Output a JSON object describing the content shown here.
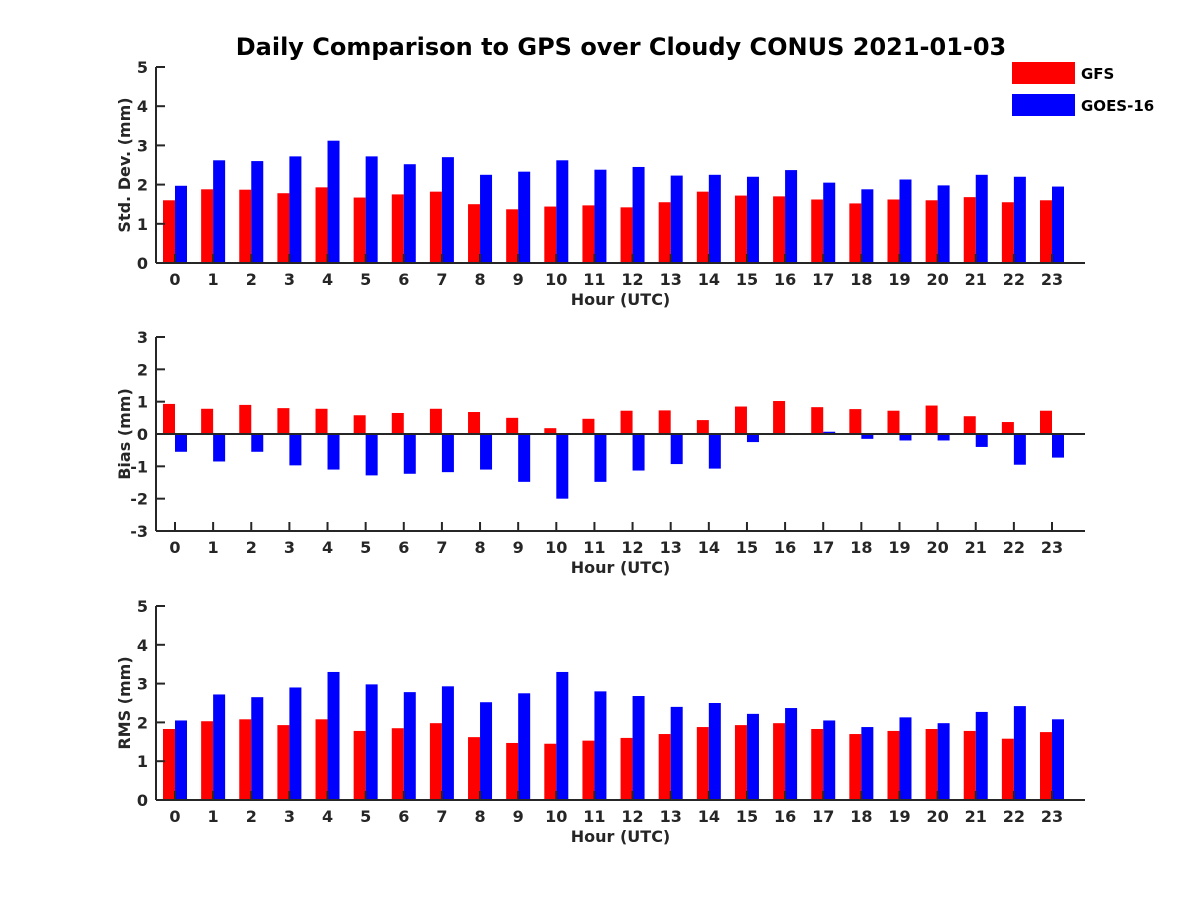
{
  "chart_data": {
    "type": "bar",
    "title": "Daily Comparison to GPS over Cloudy CONUS 2021-01-03",
    "legend": {
      "placement": "top-right",
      "entries": [
        {
          "name": "GFS",
          "color": "#ff0000"
        },
        {
          "name": "GOES-16",
          "color": "#0000ff"
        }
      ]
    },
    "subplots": [
      {
        "ylabel": "Std. Dev. (mm)",
        "xlabel": "Hour (UTC)",
        "ylim": [
          0,
          5
        ],
        "yticks": [
          0,
          1,
          2,
          3,
          4,
          5
        ],
        "categories": [
          "0",
          "1",
          "2",
          "3",
          "4",
          "5",
          "6",
          "7",
          "8",
          "9",
          "10",
          "11",
          "12",
          "13",
          "14",
          "15",
          "16",
          "17",
          "18",
          "19",
          "20",
          "21",
          "22",
          "23"
        ],
        "series": [
          {
            "name": "GFS",
            "color": "#ff0000",
            "values": [
              1.6,
              1.88,
              1.87,
              1.78,
              1.93,
              1.67,
              1.75,
              1.82,
              1.5,
              1.37,
              1.44,
              1.47,
              1.42,
              1.55,
              1.82,
              1.72,
              1.7,
              1.62,
              1.52,
              1.62,
              1.6,
              1.68,
              1.55,
              1.6
            ]
          },
          {
            "name": "GOES-16",
            "color": "#0000ff",
            "values": [
              1.97,
              2.62,
              2.6,
              2.72,
              3.12,
              2.72,
              2.52,
              2.7,
              2.25,
              2.33,
              2.62,
              2.38,
              2.45,
              2.23,
              2.25,
              2.2,
              2.37,
              2.05,
              1.88,
              2.13,
              1.98,
              2.25,
              2.2,
              1.95
            ]
          }
        ]
      },
      {
        "ylabel": "Bias (mm)",
        "xlabel": "Hour (UTC)",
        "ylim": [
          -3,
          3
        ],
        "yticks": [
          -3,
          -2,
          -1,
          0,
          1,
          2,
          3
        ],
        "categories": [
          "0",
          "1",
          "2",
          "3",
          "4",
          "5",
          "6",
          "7",
          "8",
          "9",
          "10",
          "11",
          "12",
          "13",
          "14",
          "15",
          "16",
          "17",
          "18",
          "19",
          "20",
          "21",
          "22",
          "23"
        ],
        "series": [
          {
            "name": "GFS",
            "color": "#ff0000",
            "values": [
              0.93,
              0.78,
              0.9,
              0.8,
              0.78,
              0.58,
              0.65,
              0.78,
              0.68,
              0.5,
              0.18,
              0.47,
              0.72,
              0.73,
              0.43,
              0.85,
              1.02,
              0.83,
              0.77,
              0.72,
              0.88,
              0.55,
              0.37,
              0.72
            ]
          },
          {
            "name": "GOES-16",
            "color": "#0000ff",
            "values": [
              -0.55,
              -0.85,
              -0.55,
              -0.97,
              -1.1,
              -1.28,
              -1.23,
              -1.18,
              -1.1,
              -1.48,
              -2.0,
              -1.48,
              -1.13,
              -0.93,
              -1.07,
              -0.25,
              0.03,
              0.07,
              -0.15,
              -0.2,
              -0.2,
              -0.4,
              -0.95,
              -0.73
            ]
          }
        ]
      },
      {
        "ylabel": "RMS (mm)",
        "xlabel": "Hour (UTC)",
        "ylim": [
          0,
          5
        ],
        "yticks": [
          0,
          1,
          2,
          3,
          4,
          5
        ],
        "categories": [
          "0",
          "1",
          "2",
          "3",
          "4",
          "5",
          "6",
          "7",
          "8",
          "9",
          "10",
          "11",
          "12",
          "13",
          "14",
          "15",
          "16",
          "17",
          "18",
          "19",
          "20",
          "21",
          "22",
          "23"
        ],
        "series": [
          {
            "name": "GFS",
            "color": "#ff0000",
            "values": [
              1.83,
              2.03,
              2.08,
              1.93,
              2.08,
              1.78,
              1.85,
              1.98,
              1.62,
              1.47,
              1.45,
              1.53,
              1.6,
              1.7,
              1.88,
              1.93,
              1.98,
              1.83,
              1.7,
              1.78,
              1.83,
              1.78,
              1.58,
              1.75
            ]
          },
          {
            "name": "GOES-16",
            "color": "#0000ff",
            "values": [
              2.05,
              2.72,
              2.65,
              2.9,
              3.3,
              2.98,
              2.78,
              2.93,
              2.52,
              2.75,
              3.3,
              2.8,
              2.68,
              2.4,
              2.5,
              2.22,
              2.37,
              2.05,
              1.88,
              2.13,
              1.98,
              2.27,
              2.42,
              2.08
            ]
          }
        ]
      }
    ]
  }
}
